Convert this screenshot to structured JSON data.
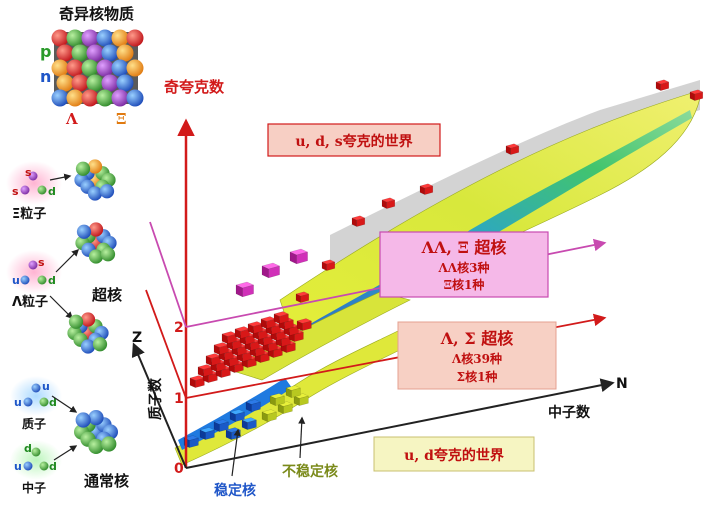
{
  "title_exotic": "奇异核物质",
  "label_p": "p",
  "label_n": "n",
  "label_lambda": "Λ",
  "label_xi": "Ξ",
  "strange_quark_number": "奇夸克数",
  "box_uds_world": "u, d, s夸克的世界",
  "box_ud_world": "u, d夸克的世界",
  "box_double": {
    "title": "ΛΛ, Ξ 超核",
    "line1": "ΛΛ核3种",
    "line2": "Ξ核1种"
  },
  "box_single": {
    "title": "Λ, Σ 超核",
    "line1": "Λ核39种",
    "line2": "Σ核1种"
  },
  "axis_z": "Z",
  "axis_n": "N",
  "axis_proton": "质子数",
  "axis_neutron": "中子数",
  "tick_0": "0",
  "tick_1": "1",
  "tick_2": "2",
  "label_stable": "稳定核",
  "label_unstable": "不稳定核",
  "particles": {
    "xi": {
      "q1": "s",
      "q2": "s",
      "q3": "d",
      "name": "Ξ粒子"
    },
    "lambda": {
      "q1": "u",
      "q2": "s",
      "q3": "d",
      "name": "Λ粒子"
    },
    "proton": {
      "q1": "u",
      "q2": "u",
      "q3": "d",
      "name": "质子"
    },
    "neutron": {
      "q1": "d",
      "q2": "u",
      "q3": "d",
      "name": "中子"
    }
  },
  "label_hypernucleus": "超核",
  "label_normal_nucleus": "通常核",
  "colors": {
    "axis_red": "#d21a1a",
    "box_pink": "#f5b8e8",
    "box_salmon": "#f7d0c4",
    "box_yellow": "#f6f5c2",
    "stable_blue": "#1f56c8",
    "unstable_olive": "#7a8a1a"
  }
}
